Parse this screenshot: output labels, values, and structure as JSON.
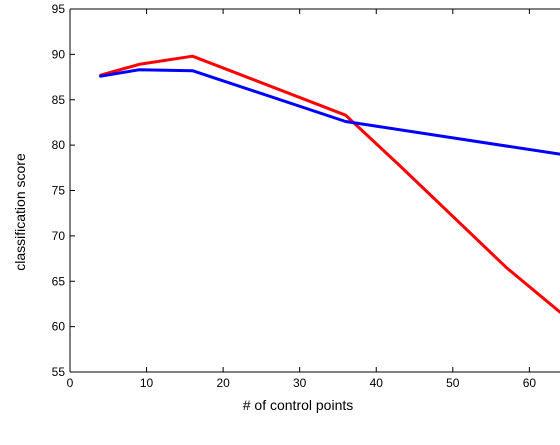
{
  "chart_data": {
    "type": "line",
    "title": "",
    "xlabel": "# of control points",
    "ylabel": "classification score",
    "xlim": [
      0,
      64
    ],
    "ylim": [
      55,
      95
    ],
    "xticks": [
      0,
      10,
      20,
      30,
      40,
      50,
      60
    ],
    "yticks": [
      55,
      60,
      65,
      70,
      75,
      80,
      85,
      90,
      95
    ],
    "grid": false,
    "legend": "none",
    "series": [
      {
        "color": "#ff0000",
        "x": [
          4,
          9,
          16,
          36,
          43,
          57,
          64
        ],
        "y": [
          87.7,
          88.9,
          89.8,
          83.3,
          77.8,
          66.5,
          61.6
        ]
      },
      {
        "color": "#0000ff",
        "x": [
          4,
          9,
          16,
          36,
          64
        ],
        "y": [
          87.6,
          88.3,
          88.2,
          82.6,
          79.0
        ]
      }
    ]
  }
}
